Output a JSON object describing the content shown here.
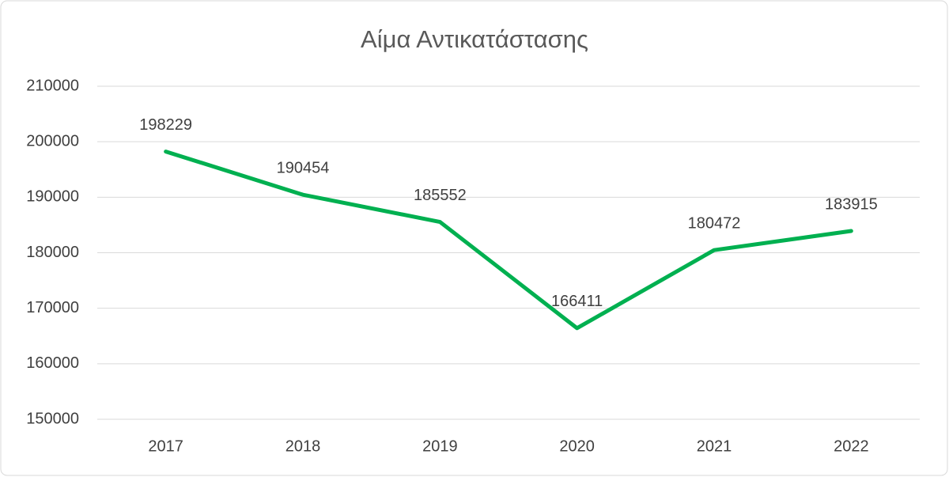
{
  "chart_data": {
    "type": "line",
    "title": "Αίμα Αντικατάστασης",
    "categories": [
      "2017",
      "2018",
      "2019",
      "2020",
      "2021",
      "2022"
    ],
    "series": [
      {
        "name": "Αίμα Αντικατάστασης",
        "color": "#00b050",
        "values": [
          198229,
          190454,
          185552,
          166411,
          180472,
          183915
        ]
      }
    ],
    "ylim": [
      150000,
      210000
    ],
    "yticks": [
      150000,
      160000,
      170000,
      180000,
      190000,
      200000,
      210000
    ],
    "grid": true,
    "legend": false,
    "data_labels": true
  }
}
